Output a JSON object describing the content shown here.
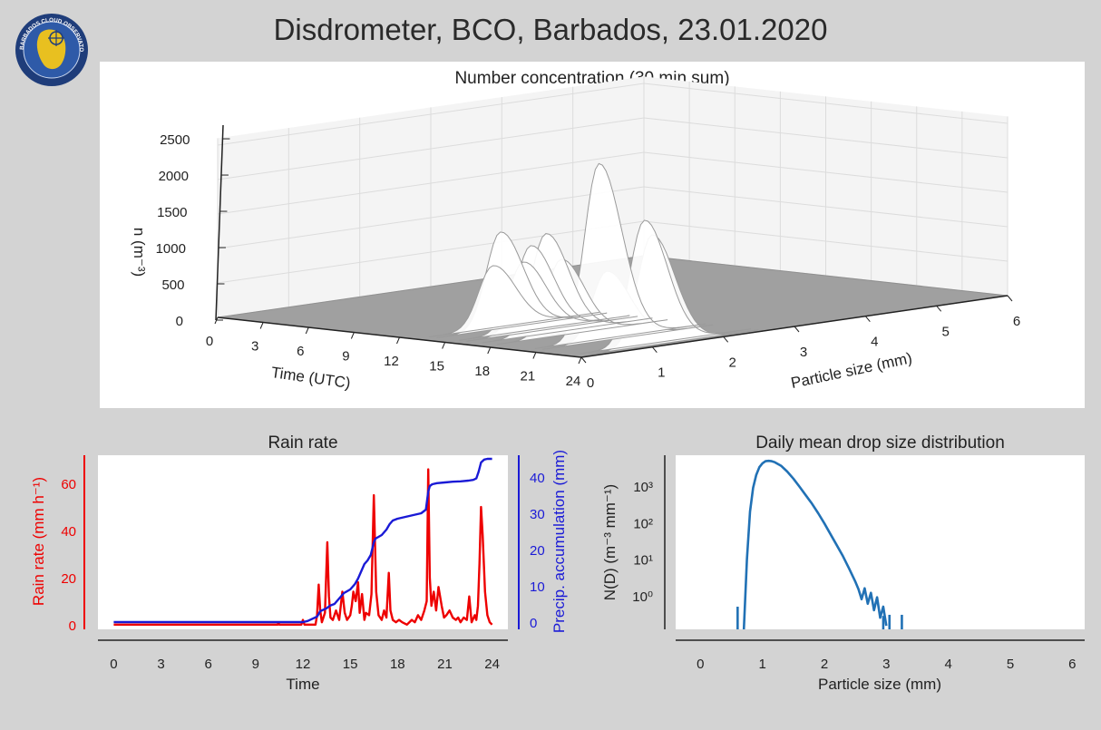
{
  "title": "Disdrometer, BCO, Barbados, 23.01.2020",
  "logo": {
    "icon": "barbados-cloud-observatory-logo",
    "text": "BARBADOS CLOUD OBSERVATORY",
    "colors": {
      "ring": "#1f3d7a",
      "island": "#e8c020"
    }
  },
  "chart_data": [
    {
      "type": "surface3d",
      "title": "Number concentration (30 min sum)",
      "zlabel": "n (m⁻³)",
      "xlabel": "Time (UTC)",
      "ylabel": "Particle size (mm)",
      "x_ticks": [
        "0",
        "3",
        "6",
        "9",
        "12",
        "15",
        "18",
        "21",
        "24"
      ],
      "y_ticks": [
        "0",
        "1",
        "2",
        "3",
        "4",
        "5",
        "6"
      ],
      "z_ticks": [
        "0",
        "500",
        "1000",
        "1500",
        "2000",
        "2500"
      ],
      "zlim": [
        0,
        2500
      ],
      "xlim": [
        0,
        24
      ],
      "ylim": [
        0,
        6
      ],
      "peak_times": [
        13.0,
        13.5,
        15.0,
        15.5,
        16.5,
        17.5,
        20.0,
        20.5,
        23.0,
        23.5
      ],
      "peak_values": [
        900,
        1400,
        1000,
        1250,
        1450,
        1100,
        2550,
        1000,
        1800,
        1600
      ],
      "peak_size_mm": 1.1,
      "surface_color": "#ffffff",
      "floor_color": "#a0a0a0"
    },
    {
      "type": "line",
      "title": "Rain rate",
      "xlabel": "Time",
      "ylabel": "Rain rate (mm h⁻¹)",
      "y2label": "Precip. accumulation (mm)",
      "x_ticks": [
        "0",
        "3",
        "6",
        "9",
        "12",
        "15",
        "18",
        "21",
        "24"
      ],
      "y_ticks": [
        "0",
        "20",
        "40",
        "60"
      ],
      "y2_ticks": [
        "0",
        "10",
        "20",
        "30",
        "40"
      ],
      "xlim": [
        -1,
        25
      ],
      "ylim": [
        -2,
        72
      ],
      "y2lim": [
        -2,
        46
      ],
      "series": [
        {
          "name": "",
          "axis": "left",
          "color": "#ee0000",
          "x": [
            0,
            10.4,
            10.45,
            10.5,
            11.9,
            12.0,
            12.1,
            12.8,
            12.9,
            13.0,
            13.1,
            13.2,
            13.4,
            13.55,
            13.65,
            13.75,
            13.9,
            14.1,
            14.3,
            14.5,
            14.65,
            14.8,
            15.0,
            15.1,
            15.2,
            15.35,
            15.5,
            15.6,
            15.75,
            15.9,
            16.0,
            16.2,
            16.35,
            16.5,
            16.65,
            16.8,
            17.0,
            17.15,
            17.3,
            17.45,
            17.55,
            17.7,
            17.9,
            18.1,
            18.3,
            18.6,
            18.9,
            19.1,
            19.3,
            19.5,
            19.7,
            19.85,
            19.95,
            20.05,
            20.15,
            20.3,
            20.45,
            20.6,
            20.8,
            20.95,
            21.1,
            21.3,
            21.5,
            21.7,
            21.85,
            22.0,
            22.2,
            22.4,
            22.55,
            22.7,
            22.9,
            23.0,
            23.1,
            23.2,
            23.3,
            23.4,
            23.55,
            23.7,
            23.85,
            24.0
          ],
          "y": [
            0,
            0,
            1,
            0,
            0,
            2,
            0,
            0,
            4,
            17,
            6,
            1,
            5,
            35,
            12,
            3,
            2,
            6,
            2,
            14,
            5,
            2,
            4,
            8,
            14,
            10,
            18,
            5,
            13,
            2,
            5,
            4,
            13,
            55,
            14,
            4,
            2,
            6,
            3,
            22,
            6,
            2,
            1,
            2,
            1,
            0,
            2,
            1,
            4,
            2,
            6,
            10,
            66,
            20,
            8,
            14,
            6,
            16,
            8,
            3,
            4,
            6,
            3,
            2,
            3,
            1,
            3,
            2,
            12,
            1,
            4,
            2,
            8,
            26,
            50,
            38,
            14,
            4,
            1,
            0
          ]
        },
        {
          "name": "",
          "axis": "right",
          "color": "#1a1ad6",
          "x": [
            0,
            12.0,
            12.3,
            12.9,
            13.1,
            13.5,
            13.7,
            14.0,
            14.4,
            14.6,
            15.0,
            15.3,
            15.5,
            15.7,
            15.9,
            16.1,
            16.3,
            16.5,
            16.6,
            16.8,
            17.0,
            17.3,
            17.5,
            17.7,
            18.0,
            18.5,
            19.0,
            19.5,
            19.8,
            19.95,
            20.05,
            20.2,
            20.5,
            21.0,
            21.5,
            22.0,
            22.5,
            22.8,
            23.0,
            23.15,
            23.3,
            23.5,
            23.7,
            24.0
          ],
          "y": [
            0,
            0,
            0.3,
            1.5,
            3.0,
            3.8,
            4.5,
            5.0,
            7.0,
            8.0,
            9.0,
            10.5,
            12.0,
            14.0,
            16.0,
            17.0,
            18.5,
            22.0,
            23.0,
            23.5,
            24.0,
            25.5,
            27.0,
            28.0,
            28.5,
            29.0,
            29.5,
            30.0,
            31.0,
            36.0,
            37.5,
            38.0,
            38.3,
            38.5,
            38.7,
            38.8,
            39.0,
            39.2,
            39.6,
            41.5,
            44.0,
            44.8,
            45.0,
            45.0
          ]
        }
      ]
    },
    {
      "type": "line",
      "title": "Daily mean drop size distribution",
      "xlabel": "Particle size (mm)",
      "ylabel": "N(D) (m⁻³ mm⁻¹)",
      "x_ticks": [
        "0",
        "1",
        "2",
        "3",
        "4",
        "5",
        "6"
      ],
      "y_ticks": [
        "10⁰",
        "10¹",
        "10²",
        "10³"
      ],
      "yscale": "log",
      "xlim": [
        -0.4,
        6.2
      ],
      "ylim": [
        0.12,
        7000
      ],
      "series": [
        {
          "name": "",
          "color": "#2171b5",
          "x": [
            0.7,
            0.75,
            0.8,
            0.85,
            0.9,
            0.95,
            1.0,
            1.05,
            1.1,
            1.15,
            1.2,
            1.3,
            1.4,
            1.5,
            1.6,
            1.7,
            1.8,
            1.9,
            2.0,
            2.1,
            2.2,
            2.3,
            2.4,
            2.5,
            2.55,
            2.6,
            2.65,
            2.7,
            2.75,
            2.8,
            2.85,
            2.9,
            2.95,
            3.0
          ],
          "y": [
            0.12,
            10,
            200,
            900,
            2000,
            3300,
            4200,
            4800,
            4900,
            4800,
            4500,
            3600,
            2500,
            1600,
            950,
            560,
            330,
            180,
            95,
            48,
            24,
            12,
            5.5,
            2.4,
            1.5,
            0.8,
            1.6,
            0.6,
            1.2,
            0.4,
            0.9,
            0.25,
            0.5,
            0.15
          ]
        }
      ],
      "spikes": [
        {
          "x": 0.6,
          "top": 0.5
        },
        {
          "x": 2.95,
          "top": 0.28
        },
        {
          "x": 3.05,
          "top": 0.3
        },
        {
          "x": 3.25,
          "top": 0.3
        }
      ]
    }
  ]
}
